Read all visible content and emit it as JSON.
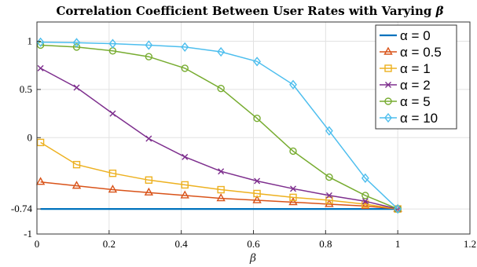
{
  "chart_data": {
    "type": "line",
    "title": "Correlation Coefficient Between User Rates with Varying",
    "title_symbol": "β",
    "xlabel": "β",
    "ylabel": "",
    "xlim": [
      0,
      1.2
    ],
    "ylim": [
      -1,
      1.2
    ],
    "xticks": [
      0,
      0.2,
      0.4,
      0.6,
      0.8,
      1,
      1.2
    ],
    "xtick_labels": [
      "0",
      "0.2",
      "0.4",
      "0.6",
      "0.8",
      "1",
      "1.2"
    ],
    "yticks": [
      -1,
      -0.74,
      0,
      0.5,
      1
    ],
    "ytick_labels": [
      "-1",
      "-0.74",
      "0",
      "0.5",
      "1"
    ],
    "grid": true,
    "legend_position": "right",
    "x": [
      0.01,
      0.11,
      0.21,
      0.31,
      0.41,
      0.51,
      0.61,
      0.71,
      0.81,
      0.91,
      1.0
    ],
    "series": [
      {
        "name": "α = 0",
        "color": "#0072BD",
        "marker": "none",
        "values": [
          -0.74,
          -0.74,
          -0.74,
          -0.74,
          -0.74,
          -0.74,
          -0.74,
          -0.74,
          -0.74,
          -0.74,
          -0.74
        ]
      },
      {
        "name": "α = 0.5",
        "color": "#D95319",
        "marker": "triangle",
        "values": [
          -0.46,
          -0.5,
          -0.54,
          -0.57,
          -0.6,
          -0.63,
          -0.65,
          -0.67,
          -0.69,
          -0.71,
          -0.74
        ]
      },
      {
        "name": "α = 1",
        "color": "#EDB120",
        "marker": "square",
        "values": [
          -0.05,
          -0.28,
          -0.37,
          -0.44,
          -0.49,
          -0.54,
          -0.58,
          -0.62,
          -0.65,
          -0.69,
          -0.74
        ]
      },
      {
        "name": "α = 2",
        "color": "#7E2F8E",
        "marker": "x",
        "values": [
          0.72,
          0.52,
          0.25,
          -0.01,
          -0.2,
          -0.35,
          -0.45,
          -0.53,
          -0.6,
          -0.66,
          -0.74
        ]
      },
      {
        "name": "α = 5",
        "color": "#77AC30",
        "marker": "circle",
        "values": [
          0.96,
          0.94,
          0.9,
          0.84,
          0.72,
          0.51,
          0.2,
          -0.14,
          -0.41,
          -0.6,
          -0.74
        ]
      },
      {
        "name": "α = 10",
        "color": "#4DBEEE",
        "marker": "diamond",
        "values": [
          0.99,
          0.985,
          0.975,
          0.96,
          0.94,
          0.89,
          0.79,
          0.55,
          0.07,
          -0.42,
          -0.74
        ]
      }
    ]
  }
}
